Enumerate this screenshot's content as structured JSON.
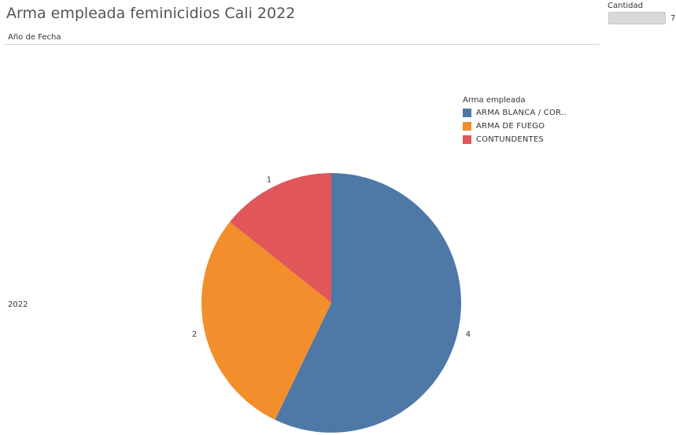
{
  "chart_data": {
    "type": "pie",
    "title": "Arma empleada feminicidios Cali 2022",
    "row_header": "Año de Fecha",
    "row_label": "2022",
    "legend_title": "Arma empleada",
    "legend_position": "top-right",
    "size_legend": {
      "title": "Cantidad",
      "max": "7"
    },
    "categories": [
      "ARMA BLANCA / COR..",
      "ARMA DE FUEGO",
      "CONTUNDENTES"
    ],
    "values": [
      4,
      2,
      1
    ],
    "colors": [
      "#4e79a7",
      "#f28e2b",
      "#e15759"
    ],
    "slice_labels": [
      "4",
      "2",
      "1"
    ]
  }
}
